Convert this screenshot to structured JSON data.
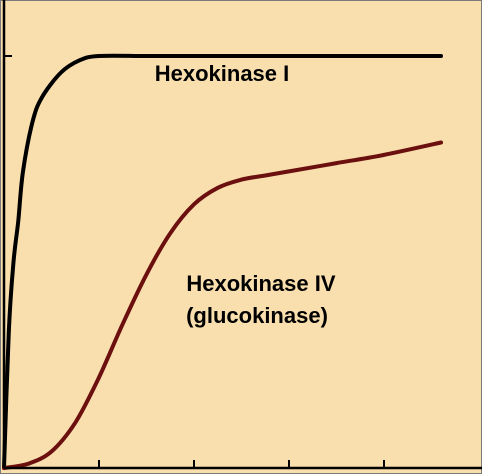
{
  "chart_data": {
    "type": "line",
    "title": "",
    "xlabel": "",
    "ylabel": "",
    "xlim": [
      0,
      5
    ],
    "ylim": [
      0,
      1
    ],
    "x_ticks": [
      1,
      2,
      3,
      4
    ],
    "y_ticks": [
      1
    ],
    "grid": false,
    "background_color": "#f9dfae",
    "series": [
      {
        "name": "Hexokinase I",
        "label_lines": [
          "Hexokinase I"
        ],
        "color": "#000000",
        "x": [
          0,
          0.05,
          0.1,
          0.15,
          0.2,
          0.3,
          0.4,
          0.6,
          0.8,
          1.0,
          1.5,
          2.0,
          3.0,
          4.0,
          4.6
        ],
        "y": [
          0,
          0.33,
          0.5,
          0.6,
          0.72,
          0.84,
          0.9,
          0.96,
          0.99,
          1.0,
          1.0,
          1.0,
          1.0,
          1.0,
          1.0
        ]
      },
      {
        "name": "Hexokinase IV (glucokinase)",
        "label_lines": [
          "Hexokinase IV",
          "(glucokinase)"
        ],
        "color": "#6b0f0f",
        "x": [
          0,
          0.25,
          0.5,
          0.75,
          1.0,
          1.25,
          1.5,
          1.75,
          2.0,
          2.25,
          2.5,
          2.75,
          3.0,
          3.5,
          4.0,
          4.6
        ],
        "y": [
          0,
          0.01,
          0.04,
          0.11,
          0.22,
          0.35,
          0.47,
          0.57,
          0.64,
          0.68,
          0.7,
          0.71,
          0.72,
          0.74,
          0.76,
          0.79
        ]
      }
    ]
  }
}
